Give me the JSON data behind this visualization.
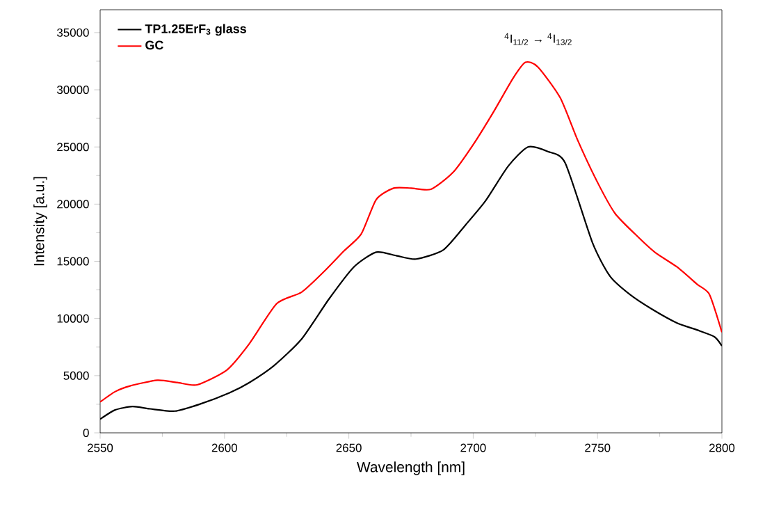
{
  "chart_data": {
    "type": "line",
    "xlabel": "Wavelength [nm]",
    "ylabel": "Intensity [a.u.]",
    "annotations": [
      "$^{4}$I$_{11/2}$ → $^{4}$I$_{13/2}$"
    ],
    "xlim": [
      2550,
      2800
    ],
    "ylim": [
      0,
      37000
    ],
    "xticks": [
      2550,
      2600,
      2650,
      2700,
      2750,
      2800
    ],
    "yticks": [
      0,
      5000,
      10000,
      15000,
      20000,
      25000,
      30000,
      35000
    ],
    "legend": "top left",
    "grid": false,
    "marker": "none",
    "line_style": "solid",
    "series": [
      {
        "name": "TP1.25ErF$_{3}$ glass",
        "color": "#000000",
        "x": [
          2550,
          2556,
          2563,
          2570,
          2580,
          2590,
          2602,
          2610,
          2620,
          2631,
          2642,
          2652,
          2661,
          2669,
          2677,
          2688,
          2697,
          2705,
          2714,
          2722,
          2730,
          2737,
          2748,
          2755,
          2763,
          2772,
          2782,
          2790,
          2797,
          2800
        ],
        "values": [
          1200,
          2000,
          2300,
          2100,
          1900,
          2500,
          3500,
          4400,
          5900,
          8200,
          11700,
          14500,
          15800,
          15500,
          15200,
          16000,
          18200,
          20300,
          23300,
          25000,
          24600,
          23600,
          16600,
          13700,
          12100,
          10800,
          9600,
          9000,
          8400,
          7600
        ]
      },
      {
        "name": "GC",
        "color": "#ff0000",
        "x": [
          2550,
          2556,
          2562,
          2573,
          2581,
          2589,
          2601,
          2610,
          2621,
          2631,
          2640,
          2648,
          2655,
          2661,
          2668,
          2675,
          2683,
          2692,
          2700,
          2708,
          2716,
          2721,
          2726,
          2735,
          2742,
          2750,
          2757,
          2765,
          2773,
          2782,
          2790,
          2795,
          2800
        ],
        "values": [
          2700,
          3600,
          4100,
          4600,
          4400,
          4200,
          5500,
          7800,
          11300,
          12300,
          14100,
          15900,
          17400,
          20400,
          21400,
          21400,
          21300,
          22800,
          25200,
          28000,
          31000,
          32400,
          32000,
          29300,
          25600,
          21900,
          19200,
          17400,
          15800,
          14500,
          13000,
          12100,
          8800
        ]
      }
    ]
  }
}
